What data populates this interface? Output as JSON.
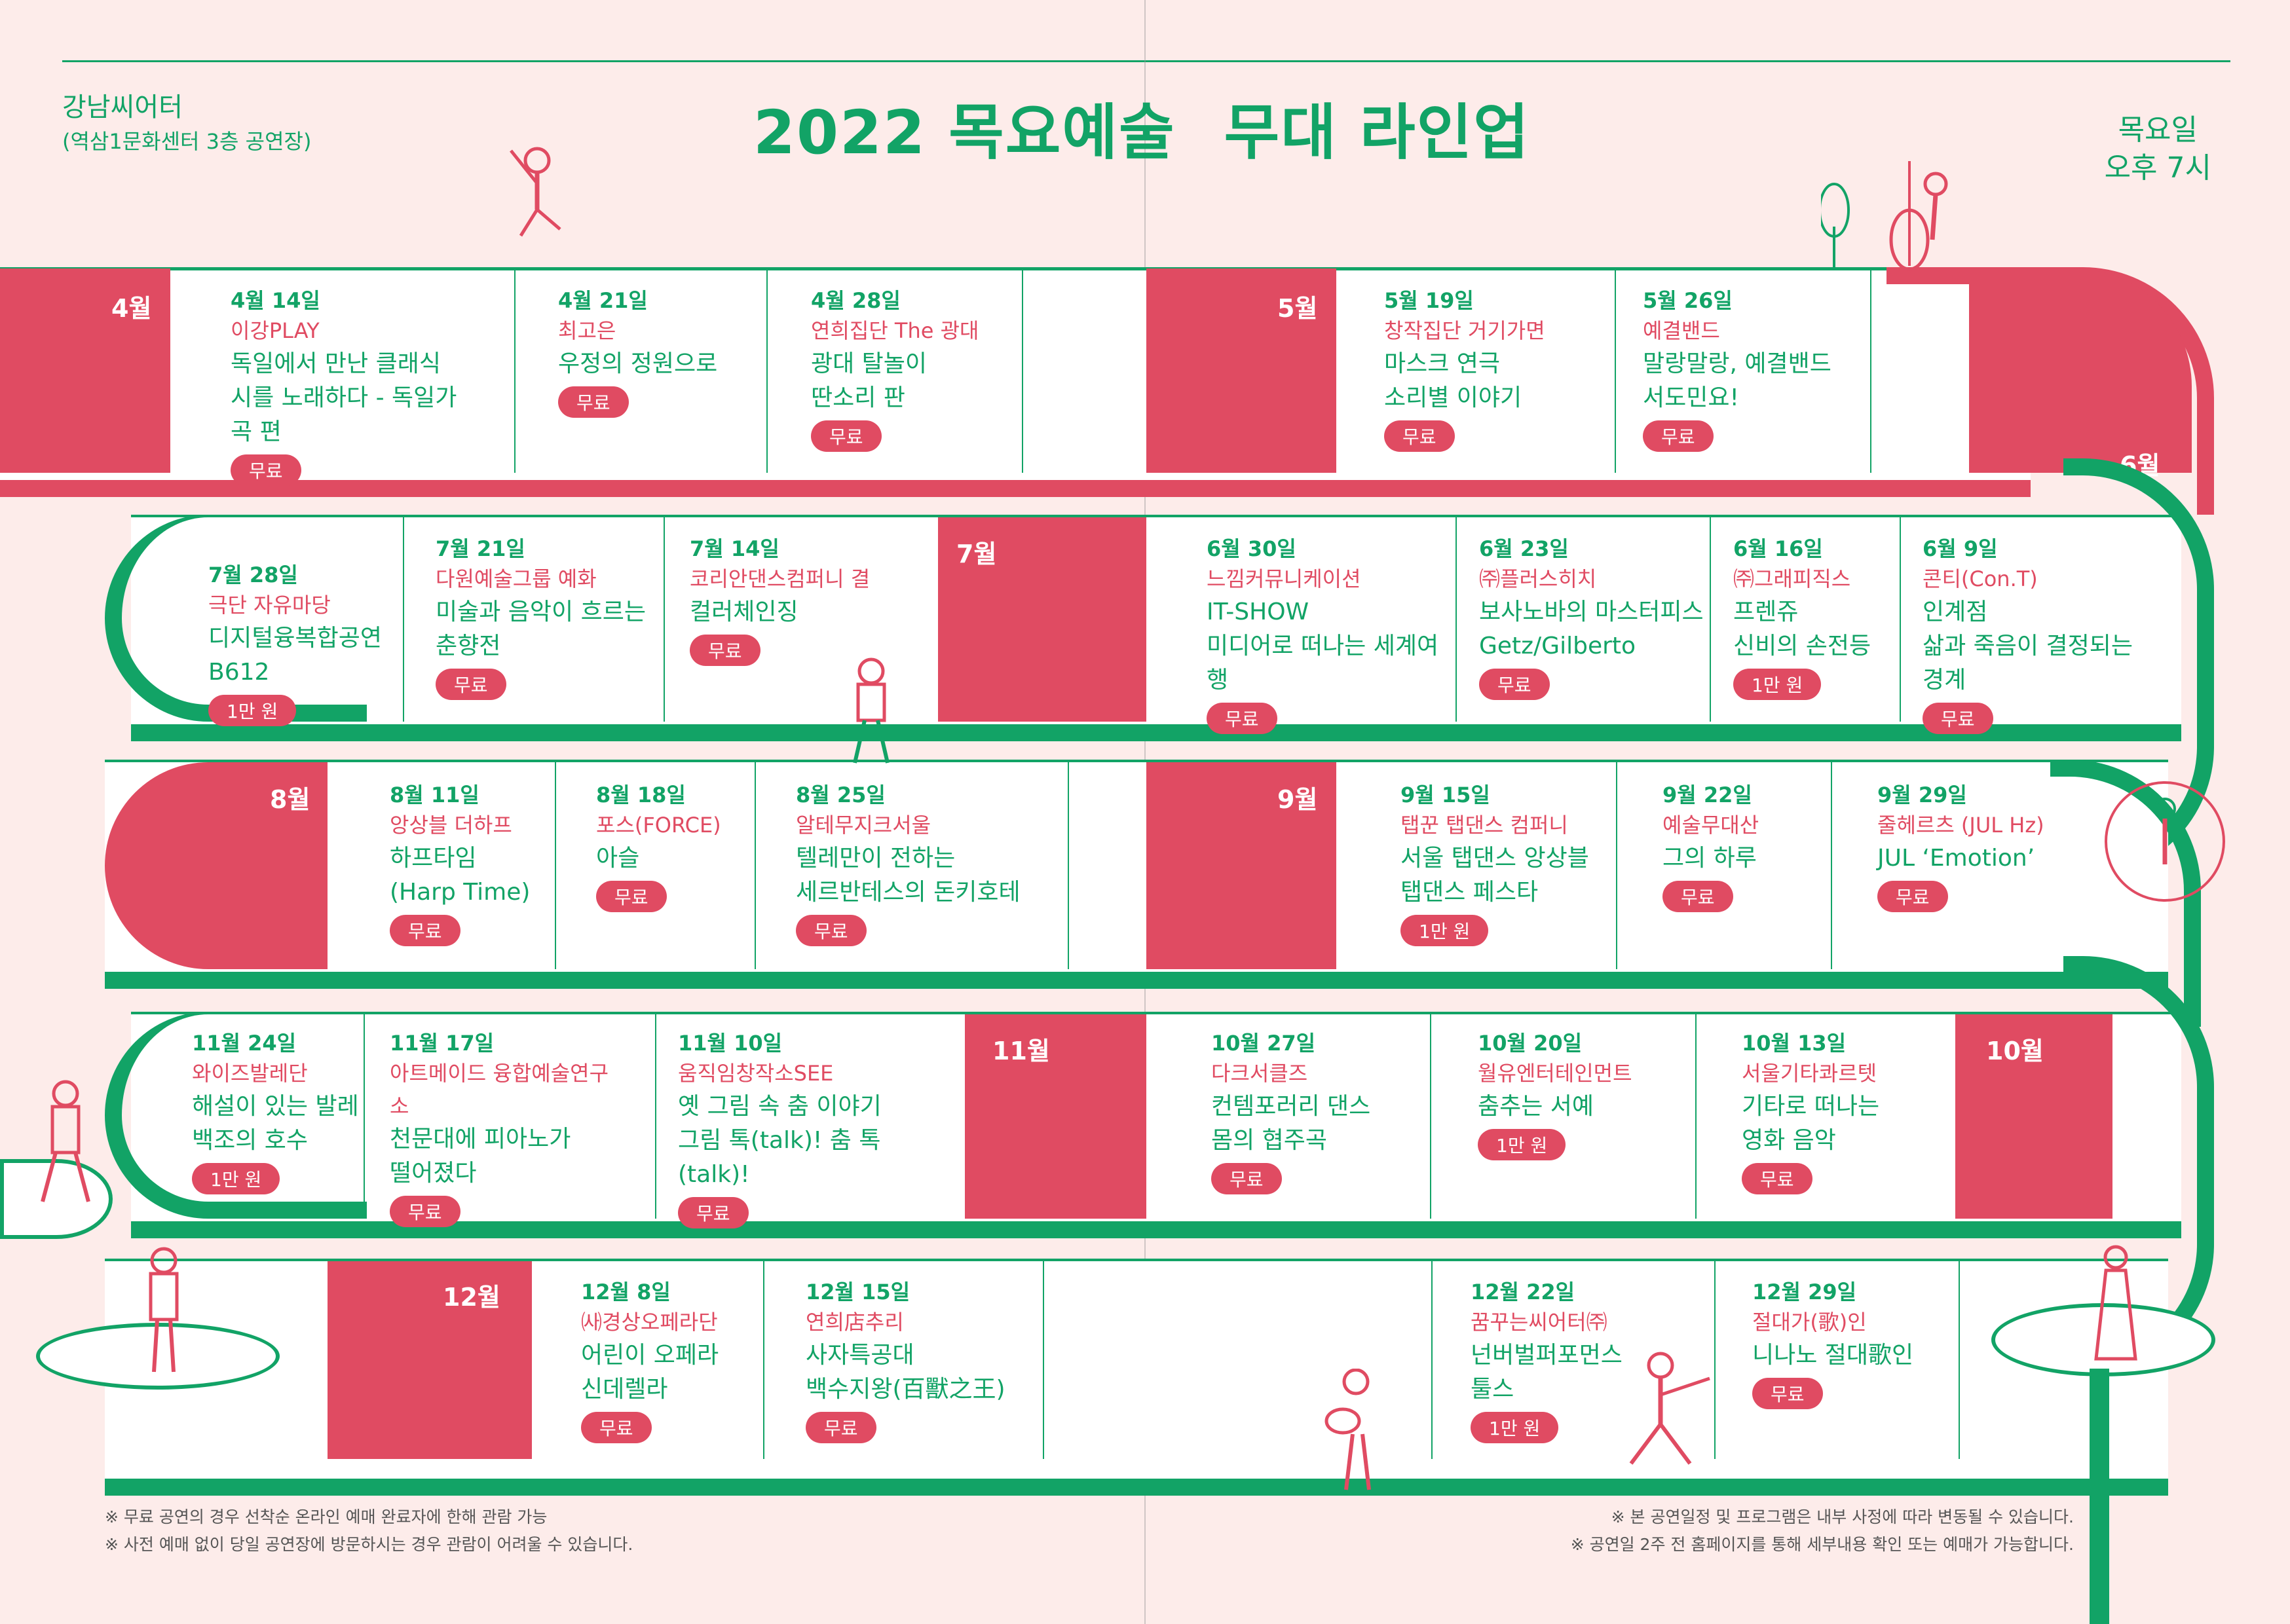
{
  "venue": {
    "name": "강남씨어터",
    "detail": "(역삼1문화센터 3층 공연장)"
  },
  "title": {
    "left": "2022 목요예술",
    "right": "무대 라인업"
  },
  "time": {
    "day": "목요일",
    "hour": "오후 7시"
  },
  "months": {
    "apr": "4월",
    "may": "5월",
    "jun": "6월",
    "jul": "7월",
    "aug": "8월",
    "sep": "9월",
    "oct": "10월",
    "nov": "11월",
    "dec": "12월"
  },
  "events": [
    {
      "date": "4월 14일",
      "group": "이강PLAY",
      "title1": "독일에서 만난 클래식",
      "title2": "시를 노래하다 - 독일가곡 편",
      "price": "무료"
    },
    {
      "date": "4월 21일",
      "group": "최고은",
      "title1": "우정의 정원으로",
      "title2": "",
      "price": "무료"
    },
    {
      "date": "4월 28일",
      "group": "연희집단 The 광대",
      "title1": "광대 탈놀이",
      "title2": "딴소리 판",
      "price": "무료"
    },
    {
      "date": "5월 19일",
      "group": "창작집단 거기가면",
      "title1": "마스크 연극",
      "title2": "소리별 이야기",
      "price": "무료"
    },
    {
      "date": "5월 26일",
      "group": "예결밴드",
      "title1": "말랑말랑, 예결밴드",
      "title2": "서도민요!",
      "price": "무료"
    },
    {
      "date": "7월 28일",
      "group": "극단 자유마당",
      "title1": "디지털융복합공연",
      "title2": "B612",
      "price": "1만 원"
    },
    {
      "date": "7월 21일",
      "group": "다원예술그룹 예화",
      "title1": "미술과 음악이 흐르는",
      "title2": "춘향전",
      "price": "무료"
    },
    {
      "date": "7월 14일",
      "group": "코리안댄스컴퍼니 결",
      "title1": "컬러체인징",
      "title2": "",
      "price": "무료"
    },
    {
      "date": "6월 30일",
      "group": "느낌커뮤니케이션",
      "title1": "IT-SHOW",
      "title2": "미디어로 떠나는 세계여행",
      "price": "무료"
    },
    {
      "date": "6월 23일",
      "group": "㈜플러스히치",
      "title1": "보사노바의 마스터피스",
      "title2": "Getz/Gilberto",
      "price": "무료"
    },
    {
      "date": "6월 16일",
      "group": "㈜그래피직스",
      "title1": "프렌쥬",
      "title2": "신비의 손전등",
      "price": "1만 원"
    },
    {
      "date": "6월 9일",
      "group": "콘티(Con.T)",
      "title1": "인계점",
      "title2": "삶과 죽음이 결정되는 경계",
      "price": "무료"
    },
    {
      "date": "8월 11일",
      "group": "앙상블 더하프",
      "title1": "하프타임",
      "title2": "(Harp Time)",
      "price": "무료"
    },
    {
      "date": "8월 18일",
      "group": "포스(FORCE)",
      "title1": "아슬",
      "title2": "",
      "price": "무료"
    },
    {
      "date": "8월 25일",
      "group": "알테무지크서울",
      "title1": "텔레만이 전하는",
      "title2": "세르반테스의 돈키호테",
      "price": "무료"
    },
    {
      "date": "9월 15일",
      "group": "탭꾼 탭댄스 컴퍼니",
      "title1": "서울 탭댄스 앙상블",
      "title2": "탭댄스 페스타",
      "price": "1만 원"
    },
    {
      "date": "9월 22일",
      "group": "예술무대산",
      "title1": "그의 하루",
      "title2": "",
      "price": "무료"
    },
    {
      "date": "9월 29일",
      "group": "줄헤르츠 (JUL Hz)",
      "title1": "JUL ‘Emotion’",
      "title2": "",
      "price": "무료"
    },
    {
      "date": "11월 24일",
      "group": "와이즈발레단",
      "title1": "해설이 있는 발레",
      "title2": "백조의 호수",
      "price": "1만 원"
    },
    {
      "date": "11월 17일",
      "group": "아트메이드 융합예술연구소",
      "title1": "천문대에 피아노가",
      "title2": "떨어졌다",
      "price": "무료"
    },
    {
      "date": "11월 10일",
      "group": "움직임창작소SEE",
      "title1": "옛 그림 속 춤 이야기",
      "title2": "그림 톡(talk)! 춤 톡(talk)!",
      "price": "무료"
    },
    {
      "date": "10월 27일",
      "group": "다크서클즈",
      "title1": "컨템포러리 댄스",
      "title2": "몸의 협주곡",
      "price": "무료"
    },
    {
      "date": "10월 20일",
      "group": "월유엔터테인먼트",
      "title1": "춤추는 서예",
      "title2": "",
      "price": "1만 원"
    },
    {
      "date": "10월 13일",
      "group": "서울기타콰르텟",
      "title1": "기타로 떠나는",
      "title2": "영화 음악",
      "price": "무료"
    },
    {
      "date": "12월 8일",
      "group": "㈔경상오페라단",
      "title1": "어린이 오페라",
      "title2": "신데렐라",
      "price": "무료"
    },
    {
      "date": "12월 15일",
      "group": "연희店추리",
      "title1": "사자특공대",
      "title2": "백수지왕(百獸之王)",
      "price": "무료"
    },
    {
      "date": "12월 22일",
      "group": "꿈꾸는씨어터㈜",
      "title1": "넌버벌퍼포먼스",
      "title2": "툴스",
      "price": "1만 원"
    },
    {
      "date": "12월 29일",
      "group": "절대가(歌)인",
      "title1": "니나노 절대歌인",
      "title2": "",
      "price": "무료"
    }
  ],
  "notes": {
    "left1": "※ 무료 공연의 경우 선착순 온라인 예매 완료자에 한해 관람 가능",
    "left2": "※ 사전 예매 없이 당일 공연장에 방문하시는 경우 관람이 어려울 수 있습니다.",
    "right1": "※ 본 공연일정 및 프로그램은 내부 사정에 따라 변동될 수 있습니다.",
    "right2": "※ 공연일 2주 전 홈페이지를 통해 세부내용 확인 또는 예매가 가능합니다."
  },
  "colors": {
    "green": "#12a366",
    "red": "#e04b62",
    "bg": "#fdecea"
  }
}
